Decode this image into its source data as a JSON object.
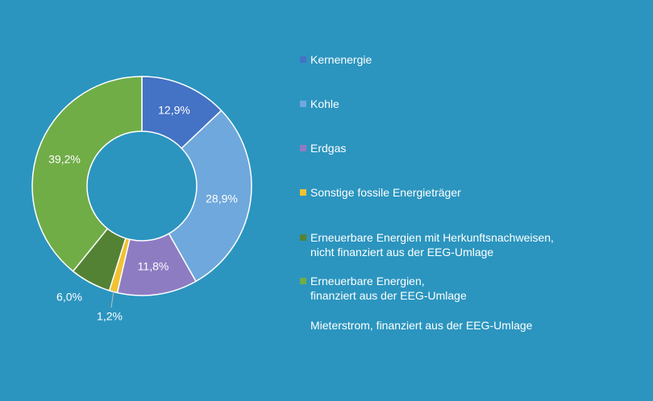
{
  "chart_data": {
    "type": "pie",
    "donut": true,
    "categories": [
      "Kernenergie",
      "Kohle",
      "Erdgas",
      "Sonstige fossile Energieträger",
      "Erneuerbare Energien mit Herkunftsnachweisen, nicht finanziert aus der EEG-Umlage",
      "Erneuerbare Energien, finanziert aus der EEG-Umlage",
      "Mieterstrom, finanziert aus der EEG-Umlage"
    ],
    "values": [
      12.9,
      28.9,
      11.8,
      1.2,
      6.0,
      39.2,
      0
    ],
    "data_labels": [
      "12,9%",
      "28,9%",
      "11,8%",
      "1,2%",
      "6,0%",
      "39,2%",
      ""
    ],
    "colors": [
      "#4472C4",
      "#6FA8DC",
      "#8E7CC3",
      "#F1C232",
      "#548235",
      "#70AD47",
      ""
    ],
    "legend_position": "right"
  },
  "legend": {
    "items": [
      {
        "lines": [
          "Kernenergie"
        ],
        "color": "#4472C4"
      },
      {
        "lines": [
          "Kohle"
        ],
        "color": "#6FA8DC"
      },
      {
        "lines": [
          "Erdgas"
        ],
        "color": "#8E7CC3"
      },
      {
        "lines": [
          "Sonstige fossile Energieträger"
        ],
        "color": "#F1C232"
      },
      {
        "lines": [
          "Erneuerbare Energien mit Herkunftsnachweisen,",
          "nicht finanziert aus der EEG-Umlage"
        ],
        "color": "#548235"
      },
      {
        "lines": [
          "Erneuerbare Energien,",
          "finanziert aus der EEG-Umlage"
        ],
        "color": "#70AD47"
      },
      {
        "lines": [
          "Mieterstrom, finanziert aus der EEG-Umlage"
        ],
        "color": ""
      }
    ]
  }
}
